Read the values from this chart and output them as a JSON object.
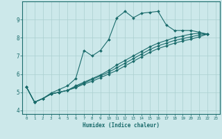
{
  "xlabel": "Humidex (Indice chaleur)",
  "bg_color": "#cce8ea",
  "grid_color": "#aacfcf",
  "line_color": "#1a6b6b",
  "x_ticks": [
    0,
    1,
    2,
    3,
    4,
    5,
    6,
    7,
    8,
    9,
    10,
    11,
    12,
    13,
    14,
    15,
    16,
    17,
    18,
    19,
    20,
    21,
    22,
    23
  ],
  "y_ticks": [
    4,
    5,
    6,
    7,
    8,
    9
  ],
  "ylim": [
    3.8,
    10.0
  ],
  "xlim": [
    -0.5,
    23.5
  ],
  "lines": [
    [
      5.3,
      4.45,
      4.65,
      4.95,
      5.15,
      5.35,
      5.75,
      7.3,
      7.0,
      7.3,
      7.9,
      9.1,
      9.45,
      9.1,
      9.35,
      9.4,
      9.45,
      8.7,
      8.4,
      8.4,
      8.4,
      8.3,
      8.2
    ],
    [
      5.3,
      4.45,
      4.65,
      4.9,
      5.0,
      5.1,
      5.35,
      5.55,
      5.75,
      5.95,
      6.2,
      6.5,
      6.75,
      7.0,
      7.25,
      7.5,
      7.7,
      7.85,
      8.0,
      8.1,
      8.2,
      8.25,
      8.2
    ],
    [
      5.3,
      4.45,
      4.65,
      4.9,
      5.0,
      5.1,
      5.3,
      5.5,
      5.7,
      5.9,
      6.1,
      6.35,
      6.6,
      6.85,
      7.1,
      7.35,
      7.55,
      7.7,
      7.85,
      7.95,
      8.05,
      8.15,
      8.2
    ],
    [
      5.3,
      4.45,
      4.65,
      4.9,
      5.0,
      5.1,
      5.25,
      5.45,
      5.6,
      5.8,
      6.0,
      6.2,
      6.45,
      6.7,
      6.95,
      7.2,
      7.4,
      7.55,
      7.7,
      7.82,
      7.92,
      8.05,
      8.2
    ]
  ]
}
